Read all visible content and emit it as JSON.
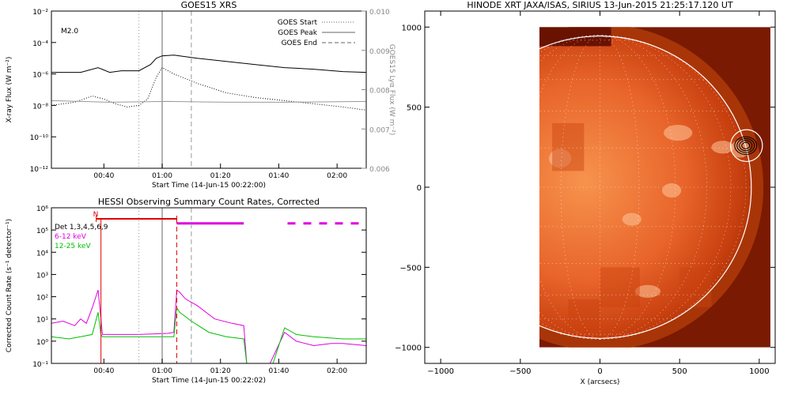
{
  "chart_data": [
    {
      "type": "line",
      "title": "GOES15 XRS",
      "xlabel": "Start Time (14-Jun-15 00:22:00)",
      "ylabel": "X-ray Flux (W m⁻²)",
      "ylabel_right": "GOES15 Lyα Flux (W m⁻²)",
      "annotation": "M2.0",
      "x_ticks": [
        "00:40",
        "01:00",
        "01:20",
        "01:40",
        "02:00"
      ],
      "y_ticks": [
        "10⁻²",
        "10⁻⁴",
        "10⁻⁶",
        "10⁻⁸",
        "10⁻¹⁰",
        "10⁻¹²"
      ],
      "y_ticks_right": [
        "0.010",
        "0.009",
        "0.008",
        "0.007",
        "0.006"
      ],
      "xlim_minutes_after_start": [
        0,
        108
      ],
      "ylim_log10": [
        -12,
        -2
      ],
      "ylim_right": [
        0.006,
        0.01
      ],
      "legend": [
        {
          "label": "GOES Start",
          "style": "dotted"
        },
        {
          "label": "GOES Peak",
          "style": "solid"
        },
        {
          "label": "GOES End",
          "style": "dashed"
        }
      ],
      "legend_position": "top-right",
      "event_lines_minutes": {
        "start": 30,
        "peak": 38,
        "end": 48
      },
      "series": [
        {
          "name": "",
          "color": "#000000",
          "style": "solid",
          "x": [
            0,
            10,
            16,
            20,
            24,
            30,
            34,
            36,
            38,
            42,
            50,
            60,
            70,
            80,
            90,
            100,
            108
          ],
          "log10_y": [
            -5.9,
            -5.9,
            -5.6,
            -5.9,
            -5.8,
            -5.8,
            -5.4,
            -5.0,
            -4.85,
            -4.8,
            -5.0,
            -5.2,
            -5.4,
            -5.6,
            -5.7,
            -5.85,
            -5.9
          ]
        },
        {
          "name": "",
          "color": "#000000",
          "style": "dotted",
          "x": [
            0,
            8,
            14,
            18,
            22,
            26,
            30,
            33,
            36,
            38,
            42,
            50,
            60,
            70,
            80,
            90,
            100,
            108
          ],
          "log10_y": [
            -8.0,
            -7.8,
            -7.4,
            -7.6,
            -7.9,
            -8.1,
            -8.0,
            -7.6,
            -6.2,
            -5.6,
            -6.0,
            -6.6,
            -7.2,
            -7.5,
            -7.7,
            -7.9,
            -8.1,
            -8.3
          ]
        },
        {
          "name": "",
          "color": "#999999",
          "style": "solid",
          "x": [
            0,
            20,
            40,
            60,
            80,
            108
          ],
          "log10_y": [
            -7.7,
            -7.8,
            -7.75,
            -7.8,
            -7.8,
            -7.75
          ]
        }
      ]
    },
    {
      "type": "line",
      "title": "HESSI Observing Summary Count Rates, Corrected",
      "xlabel": "Start Time (14-Jun-15 00:22:02)",
      "ylabel": "Corrected Count Rate (s⁻¹ detector⁻¹)",
      "x_ticks": [
        "00:40",
        "01:00",
        "01:20",
        "01:40",
        "02:00"
      ],
      "y_ticks": [
        "10⁶",
        "10⁵",
        "10⁴",
        "10³",
        "10²",
        "10¹",
        "10⁰",
        "10⁻¹"
      ],
      "xlim_minutes_after_start": [
        0,
        108
      ],
      "ylim_log10": [
        -1,
        6
      ],
      "legend": [
        {
          "label": "Det 1,3,4,5,6,9",
          "color": "#000000"
        },
        {
          "label": "6-12 keV",
          "color": "#e000e0"
        },
        {
          "label": "12-25 keV",
          "color": "#00c000"
        }
      ],
      "legend_position": "top-left",
      "marker_label": "N",
      "event_lines_minutes": {
        "start": 30,
        "peak": 38,
        "end": 48,
        "red_solid": 17,
        "red_dashed": 43
      },
      "series": [
        {
          "name": "6-12 keV",
          "color": "#e000e0",
          "x": [
            0,
            4,
            8,
            10,
            12,
            14,
            16,
            17,
            17.5,
            20,
            30,
            40,
            42,
            43,
            44,
            46,
            50,
            56,
            62,
            66,
            67,
            75,
            80,
            84,
            90,
            96,
            100,
            108
          ],
          "log10_y": [
            0.8,
            0.9,
            0.7,
            1.0,
            0.8,
            1.5,
            2.3,
            1.0,
            0.3,
            0.3,
            0.3,
            0.35,
            0.4,
            2.3,
            2.2,
            1.9,
            1.6,
            1.0,
            0.8,
            0.7,
            -1.0,
            -1.0,
            0.4,
            0.0,
            -0.2,
            -0.1,
            -0.1,
            -0.2
          ]
        },
        {
          "name": "12-25 keV",
          "color": "#00c000",
          "x": [
            0,
            6,
            10,
            14,
            16,
            17,
            17.5,
            30,
            42,
            43,
            44,
            48,
            54,
            60,
            66,
            67,
            76,
            80,
            84,
            90,
            100,
            108
          ],
          "log10_y": [
            0.2,
            0.1,
            0.2,
            0.3,
            1.3,
            0.3,
            0.2,
            0.2,
            0.2,
            1.5,
            1.3,
            0.9,
            0.4,
            0.2,
            0.1,
            -1.0,
            -1.0,
            0.6,
            0.3,
            0.2,
            0.1,
            0.1
          ]
        },
        {
          "name": "",
          "color": "#e000e0",
          "style": "solid",
          "x": [
            43,
            66
          ],
          "log10_y": [
            5.3,
            5.3
          ]
        },
        {
          "name": "",
          "color": "#e000e0",
          "style": "dashed",
          "x": [
            81,
            99,
            103,
            108
          ],
          "log10_y": [
            5.3,
            5.3,
            5.3,
            5.3
          ]
        }
      ]
    },
    {
      "type": "heatmap",
      "title": "HINODE XRT JAXA/ISAS, SIRIUS 13-Jun-2015 21:25:17.120 UT",
      "xlabel": "X (arcsecs)",
      "ylabel": "",
      "x_ticks": [
        "−1000",
        "−500",
        "0",
        "500",
        "1000"
      ],
      "y_ticks": [
        "1000",
        "500",
        "0",
        "−500",
        "−1000"
      ],
      "xlim": [
        -1100,
        1100
      ],
      "ylim": [
        -1100,
        1100
      ],
      "solar_limb_radius_arcsec": 950,
      "contour_center": [
        920,
        260
      ],
      "colormap": "orange-red"
    }
  ]
}
